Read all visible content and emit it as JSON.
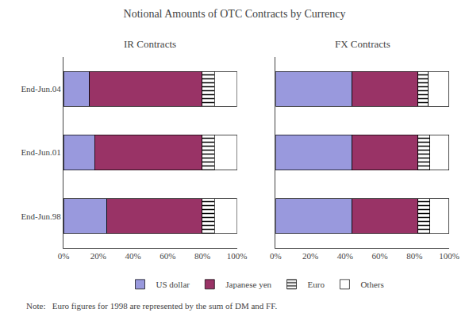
{
  "title": "Notional Amounts of OTC Contracts by Currency",
  "annotations": [
    "Note:   Euro figures for 1998 are represented by the sum of DM and FF."
  ],
  "chart_data": [
    {
      "type": "bar",
      "title": "IR Contracts",
      "orientation": "horizontal",
      "stacked": true,
      "grid": false,
      "legend": "bottom",
      "categories": [
        "End-Jun.98",
        "End-Jun.01",
        "End-Jun.04"
      ],
      "series": [
        {
          "name": "US dollar",
          "color": "#9999dd",
          "values": [
            0.25,
            0.18,
            0.15
          ]
        },
        {
          "name": "Japanese yen",
          "color": "#993366",
          "values": [
            0.55,
            0.62,
            0.65
          ]
        },
        {
          "name": "Euro",
          "color": "#ffff00",
          "marker": "hatch",
          "values": [
            0.07,
            0.07,
            0.07
          ]
        },
        {
          "name": "Others",
          "color": "#ffffff",
          "values": [
            0.13,
            0.13,
            0.13
          ]
        }
      ],
      "xlim": [
        0,
        1.0
      ],
      "xticks": [
        {
          "value": 0,
          "label": "0%"
        },
        {
          "value": 0.2,
          "label": "20%"
        },
        {
          "value": 0.4,
          "label": "40%"
        },
        {
          "value": 0.6,
          "label": "60%"
        },
        {
          "value": 0.8,
          "label": "80%"
        },
        {
          "value": 1.0,
          "label": "100%"
        }
      ]
    },
    {
      "type": "bar",
      "title": "FX Contracts",
      "orientation": "horizontal",
      "stacked": true,
      "grid": false,
      "tick_labels": "x",
      "categories": [
        "End-Jun.98",
        "End-Jun.01",
        "End-Jun.04"
      ],
      "series": [
        {
          "name": "US dollar",
          "color": "#9999dd",
          "values": [
            0.44,
            0.44,
            0.44
          ]
        },
        {
          "name": "Japanese yen",
          "color": "#993366",
          "values": [
            0.38,
            0.38,
            0.38
          ]
        },
        {
          "name": "Euro",
          "color": "#ffff00",
          "marker": "hatch",
          "values": [
            0.07,
            0.07,
            0.06
          ]
        },
        {
          "name": "Others",
          "color": "#ffffff",
          "values": [
            0.11,
            0.11,
            0.12
          ]
        }
      ],
      "xlim": [
        0,
        1.0
      ],
      "xticks": [
        {
          "value": 0,
          "label": "0%"
        },
        {
          "value": 0.2,
          "label": "20%"
        },
        {
          "value": 0.4,
          "label": "40%"
        },
        {
          "value": 0.6,
          "label": "60%"
        },
        {
          "value": 0.8,
          "label": "80%"
        },
        {
          "value": 1.0,
          "label": "100%"
        }
      ]
    }
  ]
}
